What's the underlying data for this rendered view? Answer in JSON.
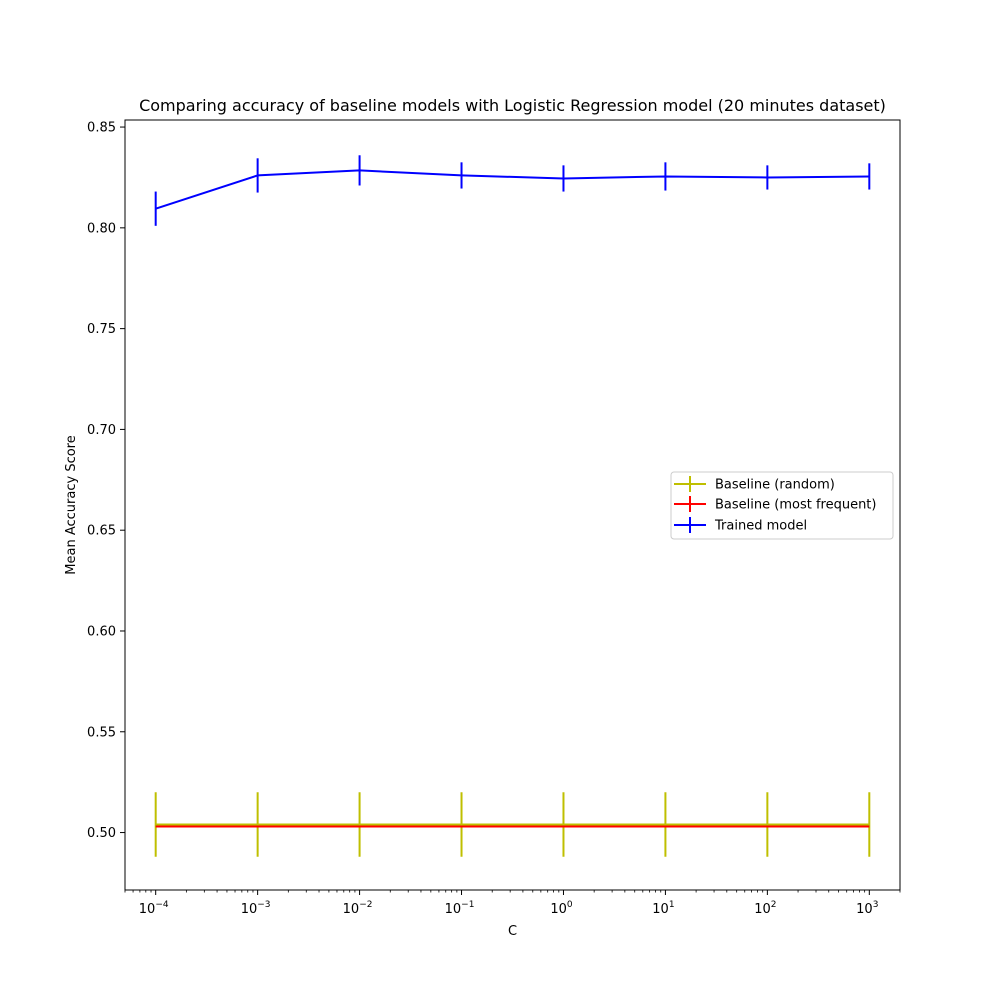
{
  "chart_data": {
    "type": "line",
    "title": "Comparing accuracy of baseline models with Logistic Regression model (20 minutes dataset)",
    "xlabel": "C",
    "ylabel": "Mean Accuracy Score",
    "x_scale": "log",
    "x": [
      0.0001,
      0.001,
      0.01,
      0.1,
      1,
      10,
      100,
      1000
    ],
    "xlim": [
      5e-05,
      2000
    ],
    "ylim": [
      0.4715,
      0.8535
    ],
    "x_ticks": [
      {
        "exp": -4,
        "base": "10",
        "sup": "−4"
      },
      {
        "exp": -3,
        "base": "10",
        "sup": "−3"
      },
      {
        "exp": -2,
        "base": "10",
        "sup": "−2"
      },
      {
        "exp": -1,
        "base": "10",
        "sup": "−1"
      },
      {
        "exp": 0,
        "base": "10",
        "sup": "0"
      },
      {
        "exp": 1,
        "base": "10",
        "sup": "1"
      },
      {
        "exp": 2,
        "base": "10",
        "sup": "2"
      },
      {
        "exp": 3,
        "base": "10",
        "sup": "3"
      }
    ],
    "y_ticks": [
      {
        "value": 0.5,
        "label": "0.50"
      },
      {
        "value": 0.55,
        "label": "0.55"
      },
      {
        "value": 0.6,
        "label": "0.60"
      },
      {
        "value": 0.65,
        "label": "0.65"
      },
      {
        "value": 0.7,
        "label": "0.70"
      },
      {
        "value": 0.75,
        "label": "0.75"
      },
      {
        "value": 0.8,
        "label": "0.80"
      },
      {
        "value": 0.85,
        "label": "0.85"
      }
    ],
    "grid": false,
    "legend_position": "center-right",
    "series": [
      {
        "name": "Baseline (random)",
        "color": "#bfbf00",
        "values": [
          0.504,
          0.504,
          0.504,
          0.504,
          0.504,
          0.504,
          0.504,
          0.504
        ],
        "errors": [
          0.016,
          0.016,
          0.016,
          0.016,
          0.016,
          0.016,
          0.016,
          0.016
        ]
      },
      {
        "name": "Baseline (most frequent)",
        "color": "#ff0000",
        "values": [
          0.503,
          0.503,
          0.503,
          0.503,
          0.503,
          0.503,
          0.503,
          0.503
        ],
        "errors": [
          0.0,
          0.0,
          0.0,
          0.0,
          0.0,
          0.0,
          0.0,
          0.0
        ]
      },
      {
        "name": "Trained model",
        "color": "#0000ff",
        "values": [
          0.8095,
          0.826,
          0.8285,
          0.826,
          0.8245,
          0.8255,
          0.825,
          0.8255
        ],
        "errors": [
          0.0085,
          0.0085,
          0.0075,
          0.0065,
          0.0065,
          0.007,
          0.006,
          0.0065
        ]
      }
    ]
  }
}
